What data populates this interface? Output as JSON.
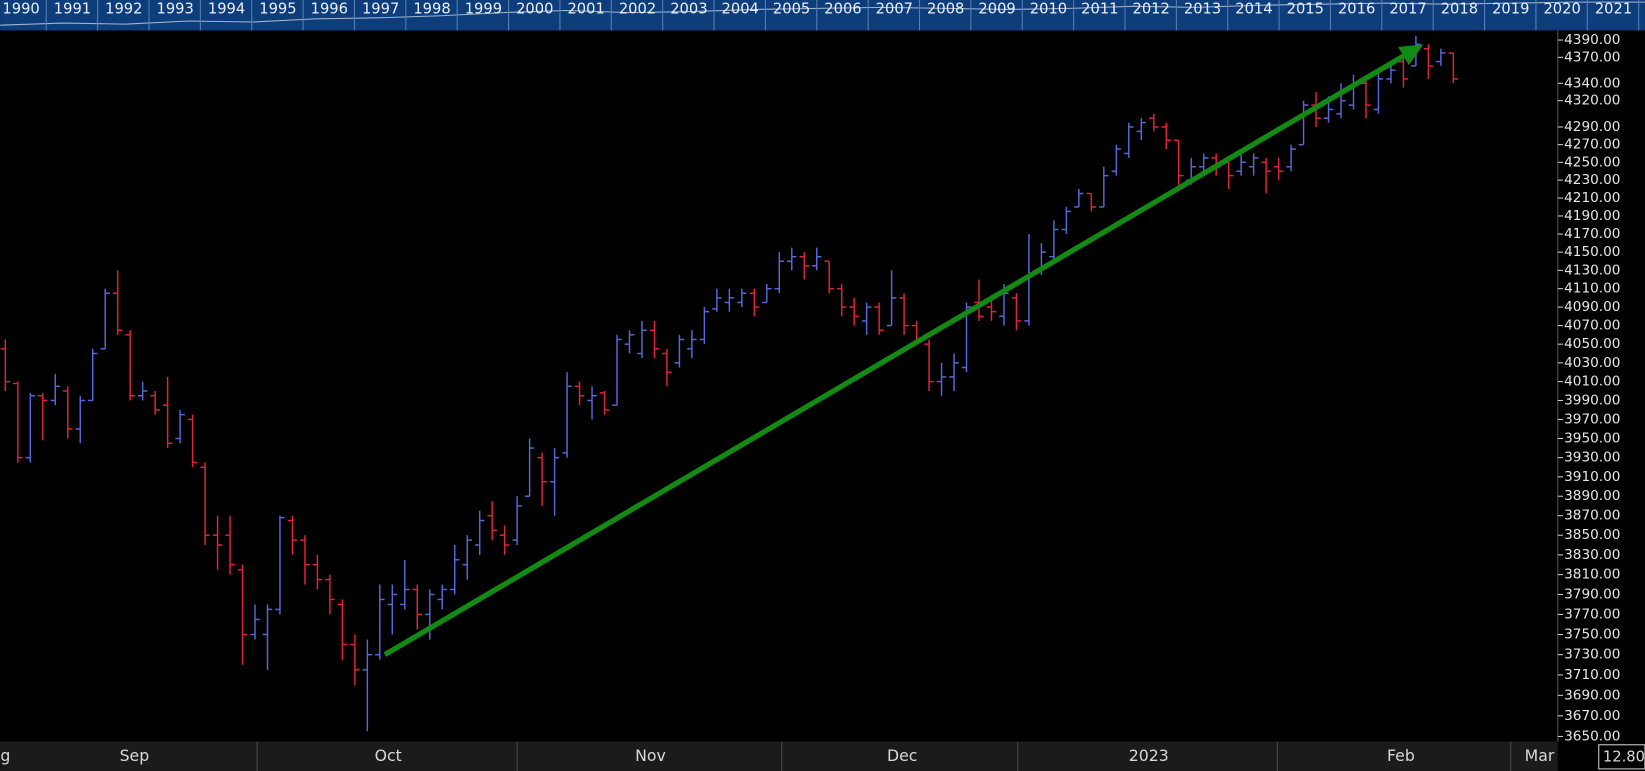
{
  "chart_data": {
    "type": "ohlc",
    "log_scale": true,
    "up_color": "#5668d8",
    "down_color": "#e0243a",
    "xlim": [
      -0.42,
      124.37
    ],
    "ylim": [
      3645,
      4400
    ],
    "yticks": [
      {
        "value": 4390,
        "label": "4390.00"
      },
      {
        "value": 4370,
        "label": "4370.00"
      },
      {
        "value": 4340,
        "label": "4340.00"
      },
      {
        "value": 4320,
        "label": "4320.00"
      },
      {
        "value": 4290,
        "label": "4290.00"
      },
      {
        "value": 4270,
        "label": "4270.00"
      },
      {
        "value": 4250,
        "label": "4250.00"
      },
      {
        "value": 4230,
        "label": "4230.00"
      },
      {
        "value": 4210,
        "label": "4210.00"
      },
      {
        "value": 4190,
        "label": "4190.00"
      },
      {
        "value": 4170,
        "label": "4170.00"
      },
      {
        "value": 4150,
        "label": "4150.00"
      },
      {
        "value": 4130,
        "label": "4130.00"
      },
      {
        "value": 4110,
        "label": "4110.00"
      },
      {
        "value": 4090,
        "label": "4090.00"
      },
      {
        "value": 4070,
        "label": "4070.00"
      },
      {
        "value": 4050,
        "label": "4050.00"
      },
      {
        "value": 4030,
        "label": "4030.00"
      },
      {
        "value": 4010,
        "label": "4010.00"
      },
      {
        "value": 3990,
        "label": "3990.00"
      },
      {
        "value": 3970,
        "label": "3970.00"
      },
      {
        "value": 3950,
        "label": "3950.00"
      },
      {
        "value": 3930,
        "label": "3930.00"
      },
      {
        "value": 3910,
        "label": "3910.00"
      },
      {
        "value": 3890,
        "label": "3890.00"
      },
      {
        "value": 3870,
        "label": "3870.00"
      },
      {
        "value": 3850,
        "label": "3850.00"
      },
      {
        "value": 3830,
        "label": "3830.00"
      },
      {
        "value": 3810,
        "label": "3810.00"
      },
      {
        "value": 3790,
        "label": "3790.00"
      },
      {
        "value": 3770,
        "label": "3770.00"
      },
      {
        "value": 3750,
        "label": "3750.00"
      },
      {
        "value": 3730,
        "label": "3730.00"
      },
      {
        "value": 3710,
        "label": "3710.00"
      },
      {
        "value": 3690,
        "label": "3690.00"
      },
      {
        "value": 3670,
        "label": "3670.00"
      },
      {
        "value": 3650,
        "label": "3650.00"
      }
    ],
    "xticks": [
      {
        "value": 0,
        "label": "g"
      },
      {
        "value": 10.34,
        "label": "Sep"
      },
      {
        "value": 30.67,
        "label": "Oct"
      },
      {
        "value": 51.68,
        "label": "Nov"
      },
      {
        "value": 71.85,
        "label": "Dec"
      },
      {
        "value": 91.6,
        "label": "2023"
      },
      {
        "value": 111.8,
        "label": "Feb"
      },
      {
        "value": 122.9,
        "label": "Mar"
      }
    ],
    "xgrid": [
      20.17,
      41.0,
      62.2,
      81.1,
      101.9,
      120.6
    ],
    "open": [
      4045,
      4008,
      3930,
      3995,
      3990,
      4000,
      3960,
      3990,
      4045,
      4105,
      4060,
      3995,
      3995,
      3985,
      3950,
      3970,
      3920,
      3850,
      3850,
      3815,
      3750,
      3750,
      3775,
      3865,
      3845,
      3820,
      3805,
      3780,
      3740,
      3715,
      3730,
      3780,
      3780,
      3795,
      3770,
      3785,
      3795,
      3820,
      3840,
      3870,
      3850,
      3845,
      3890,
      3930,
      3905,
      3935,
      4005,
      3990,
      3998,
      3985,
      4050,
      4040,
      4065,
      4040,
      4030,
      4045,
      4055,
      4088,
      4095,
      4095,
      4105,
      4095,
      4110,
      4140,
      4145,
      4135,
      4140,
      4110,
      4090,
      4075,
      4090,
      4070,
      4100,
      4070,
      4050,
      4010,
      4015,
      4025,
      4095,
      4090,
      4080,
      4100,
      4075,
      4130,
      4145,
      4175,
      4200,
      4215,
      4200,
      4240,
      4260,
      4285,
      4300,
      4290,
      4275,
      4230,
      4245,
      4255,
      4250,
      4240,
      4245,
      4250,
      4245,
      4245,
      4270,
      4315,
      4300,
      4305,
      4315,
      4340,
      4310,
      4345,
      4365,
      4360,
      4380,
      4365,
      4375
    ],
    "high": [
      4055,
      4010,
      3998,
      3998,
      4018,
      4005,
      3995,
      4045,
      4110,
      4130,
      4065,
      4010,
      4000,
      4015,
      3980,
      3975,
      3925,
      3870,
      3870,
      3820,
      3780,
      3780,
      3870,
      3870,
      3850,
      3830,
      3810,
      3785,
      3750,
      3745,
      3800,
      3800,
      3825,
      3800,
      3795,
      3800,
      3840,
      3850,
      3875,
      3885,
      3860,
      3890,
      3950,
      3935,
      3940,
      4020,
      4010,
      4005,
      4000,
      4060,
      4065,
      4075,
      4075,
      4045,
      4060,
      4065,
      4090,
      4110,
      4110,
      4110,
      4110,
      4115,
      4150,
      4155,
      4150,
      4155,
      4140,
      4115,
      4100,
      4095,
      4095,
      4130,
      4105,
      4075,
      4055,
      4030,
      4040,
      4095,
      4120,
      4100,
      4115,
      4105,
      4170,
      4160,
      4185,
      4200,
      4220,
      4215,
      4245,
      4270,
      4295,
      4300,
      4305,
      4295,
      4275,
      4255,
      4260,
      4260,
      4255,
      4260,
      4260,
      4255,
      4255,
      4270,
      4320,
      4330,
      4325,
      4340,
      4350,
      4345,
      4355,
      4365,
      4370,
      4395,
      4385,
      4380,
      4375
    ],
    "low": [
      4000,
      3925,
      3925,
      3948,
      3985,
      3950,
      3945,
      3990,
      4045,
      4060,
      3990,
      3990,
      3975,
      3940,
      3945,
      3920,
      3840,
      3815,
      3810,
      3720,
      3745,
      3715,
      3770,
      3830,
      3800,
      3795,
      3770,
      3725,
      3700,
      3655,
      3725,
      3750,
      3775,
      3755,
      3745,
      3775,
      3790,
      3805,
      3830,
      3845,
      3830,
      3840,
      3890,
      3880,
      3870,
      3930,
      3985,
      3970,
      3975,
      3985,
      4040,
      4035,
      4035,
      4005,
      4025,
      4035,
      4050,
      4085,
      4085,
      4090,
      4080,
      4095,
      4105,
      4130,
      4120,
      4130,
      4105,
      4080,
      4070,
      4060,
      4060,
      4070,
      4060,
      4050,
      4000,
      3995,
      4000,
      4020,
      4075,
      4075,
      4070,
      4065,
      4070,
      4125,
      4140,
      4170,
      4200,
      4195,
      4200,
      4235,
      4255,
      4275,
      4285,
      4265,
      4220,
      4225,
      4240,
      4235,
      4220,
      4235,
      4235,
      4215,
      4230,
      4240,
      4270,
      4290,
      4295,
      4300,
      4310,
      4300,
      4305,
      4340,
      4335,
      4360,
      4345,
      4360,
      4340
    ],
    "close": [
      4010,
      3930,
      3995,
      3990,
      4005,
      3960,
      3990,
      4040,
      4105,
      4065,
      3995,
      4000,
      3980,
      3945,
      3975,
      3925,
      3850,
      3840,
      3820,
      3750,
      3765,
      3775,
      3868,
      3845,
      3820,
      3805,
      3785,
      3740,
      3715,
      3730,
      3785,
      3790,
      3795,
      3770,
      3790,
      3795,
      3825,
      3845,
      3865,
      3855,
      3840,
      3880,
      3940,
      3905,
      3930,
      4005,
      3995,
      3995,
      3980,
      4055,
      4060,
      4065,
      4045,
      4020,
      4055,
      4055,
      4085,
      4100,
      4100,
      4105,
      4090,
      4110,
      4140,
      4145,
      4135,
      4145,
      4110,
      4090,
      4080,
      4090,
      4065,
      4100,
      4070,
      4055,
      4010,
      4015,
      4030,
      4090,
      4080,
      4085,
      4105,
      4075,
      4125,
      4150,
      4175,
      4195,
      4215,
      4200,
      4235,
      4265,
      4290,
      4295,
      4290,
      4275,
      4235,
      4245,
      4255,
      4245,
      4235,
      4250,
      4255,
      4240,
      4240,
      4265,
      4315,
      4300,
      4310,
      4320,
      4340,
      4315,
      4345,
      4355,
      4345,
      4385,
      4360,
      4375,
      4345
    ],
    "annotations": [
      {
        "shape": "arrow",
        "x": [
          30.4,
          113.6
        ],
        "y": [
          3730,
          4385
        ],
        "color": "#138a13"
      }
    ]
  },
  "navigator": {
    "years": [
      "1990",
      "1991",
      "1992",
      "1993",
      "1994",
      "1995",
      "1996",
      "1997",
      "1998",
      "1999",
      "2000",
      "2001",
      "2002",
      "2003",
      "2004",
      "2005",
      "2006",
      "2007",
      "2008",
      "2009",
      "2010",
      "2011",
      "2012",
      "2013",
      "2014",
      "2015",
      "2016",
      "2017",
      "2018",
      "2019",
      "2020",
      "2021"
    ]
  },
  "price_box": "12.80"
}
